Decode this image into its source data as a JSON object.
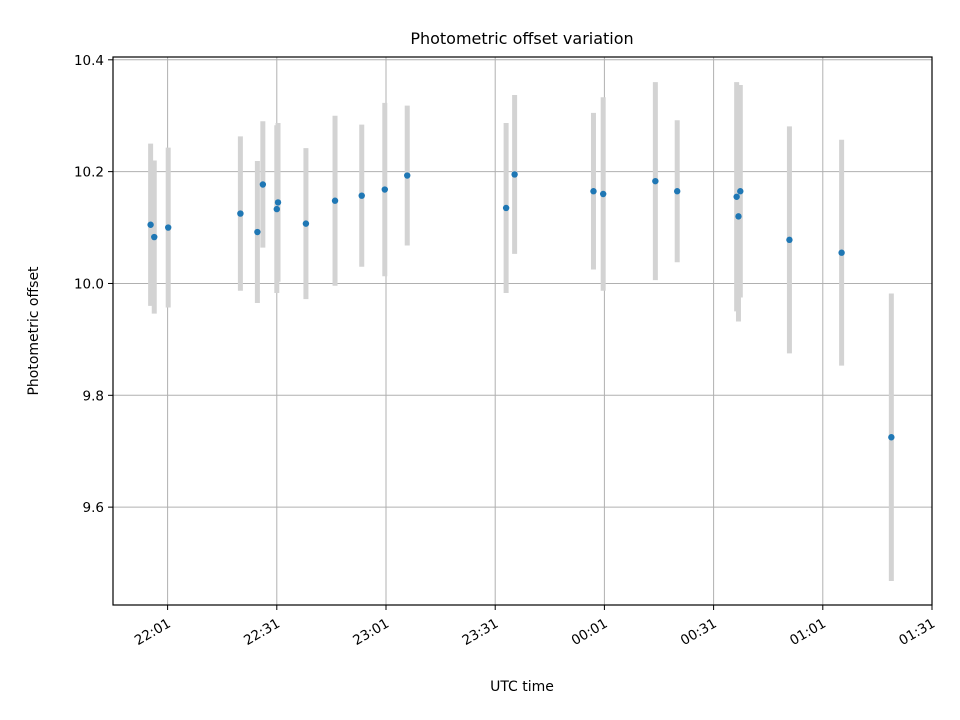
{
  "chart_data": {
    "type": "scatter",
    "title": "Photometric offset variation",
    "xlabel": "UTC time",
    "ylabel": "Photometric offset",
    "xlim": [
      "21:46",
      "01:31"
    ],
    "ylim": [
      9.425,
      10.405
    ],
    "grid": true,
    "xticks": [
      "22:01",
      "22:31",
      "23:01",
      "23:31",
      "00:01",
      "00:31",
      "01:01",
      "01:31"
    ],
    "yticks": [
      "9.6",
      "9.8",
      "10.0",
      "10.2",
      "10.4"
    ],
    "point_color": "#1f77b4",
    "errorbar_color": "#d3d3d3",
    "series": [
      {
        "points": [
          {
            "x": "21:56:20",
            "y": 10.105,
            "err": 0.145
          },
          {
            "x": "21:57:20",
            "y": 10.083,
            "err": 0.137
          },
          {
            "x": "22:01:10",
            "y": 10.1,
            "err": 0.143
          },
          {
            "x": "22:21:00",
            "y": 10.125,
            "err": 0.138
          },
          {
            "x": "22:25:40",
            "y": 10.092,
            "err": 0.127
          },
          {
            "x": "22:27:10",
            "y": 10.177,
            "err": 0.113
          },
          {
            "x": "22:31:00",
            "y": 10.133,
            "err": 0.15
          },
          {
            "x": "22:31:20",
            "y": 10.145,
            "err": 0.142
          },
          {
            "x": "22:39:00",
            "y": 10.107,
            "err": 0.135
          },
          {
            "x": "22:47:00",
            "y": 10.148,
            "err": 0.152
          },
          {
            "x": "22:54:20",
            "y": 10.157,
            "err": 0.127
          },
          {
            "x": "23:00:40",
            "y": 10.168,
            "err": 0.155
          },
          {
            "x": "23:06:50",
            "y": 10.193,
            "err": 0.125
          },
          {
            "x": "23:34:00",
            "y": 10.135,
            "err": 0.152
          },
          {
            "x": "23:36:20",
            "y": 10.195,
            "err": 0.142
          },
          {
            "x": "23:58:00",
            "y": 10.165,
            "err": 0.14
          },
          {
            "x": "00:00:40",
            "y": 10.16,
            "err": 0.173
          },
          {
            "x": "00:15:00",
            "y": 10.183,
            "err": 0.177
          },
          {
            "x": "00:21:00",
            "y": 10.165,
            "err": 0.127
          },
          {
            "x": "00:37:20",
            "y": 10.155,
            "err": 0.205
          },
          {
            "x": "00:37:50",
            "y": 10.12,
            "err": 0.188
          },
          {
            "x": "00:38:20",
            "y": 10.165,
            "err": 0.19
          },
          {
            "x": "00:51:50",
            "y": 10.078,
            "err": 0.203
          },
          {
            "x": "01:06:10",
            "y": 10.055,
            "err": 0.202
          },
          {
            "x": "01:19:50",
            "y": 9.725,
            "err": 0.257
          }
        ]
      }
    ]
  }
}
